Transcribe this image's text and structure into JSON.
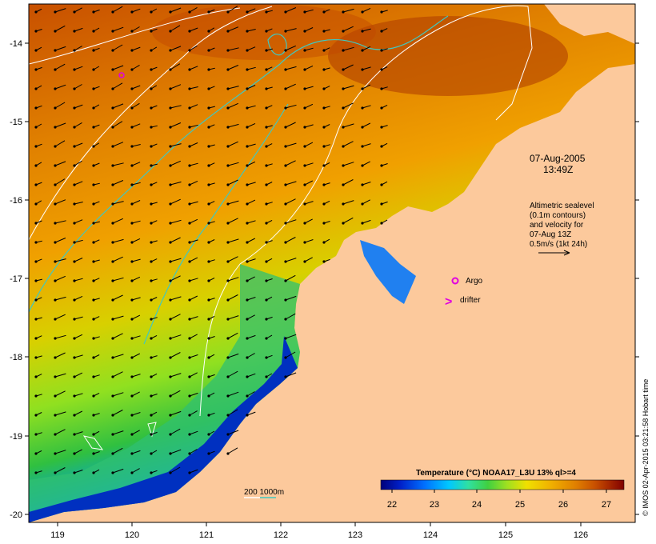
{
  "map": {
    "date": "07-Aug-2005",
    "time": "13:49Z",
    "altimetry_note": [
      "Altimetric sealevel",
      "(0.1m contours)",
      "and velocity for",
      "07-Aug 13Z",
      "0.5m/s (1kt 24h)"
    ],
    "argo_label": "Argo",
    "drifter_label": "drifter",
    "drifter_symbol": ">",
    "isobath_label": "200  1000m",
    "credit": "© IMOS 02-Apr-2015 03:21:58 Hobart time",
    "x_ticks": [
      "119",
      "120",
      "121",
      "122",
      "123",
      "124",
      "125",
      "126"
    ],
    "y_ticks": [
      "-14",
      "-15",
      "-16",
      "-17",
      "-18",
      "-19",
      "-20"
    ]
  },
  "colorbar": {
    "title": "Temperature (°C) NOAA17_L3U 13% ql>=4",
    "ticks": [
      "22",
      "23",
      "24",
      "25",
      "26",
      "27"
    ],
    "colors": [
      "#00007a",
      "#0020c8",
      "#0070ff",
      "#00c8ff",
      "#30e0a0",
      "#40d040",
      "#a0e020",
      "#f0e000",
      "#f0b000",
      "#e08000",
      "#c85000",
      "#a02000",
      "#800000"
    ]
  },
  "colors": {
    "land": "#fcc99c",
    "isobath_200": "#ffffff",
    "isobath_1000": "#40c8c0",
    "argo": "#e000e0"
  }
}
